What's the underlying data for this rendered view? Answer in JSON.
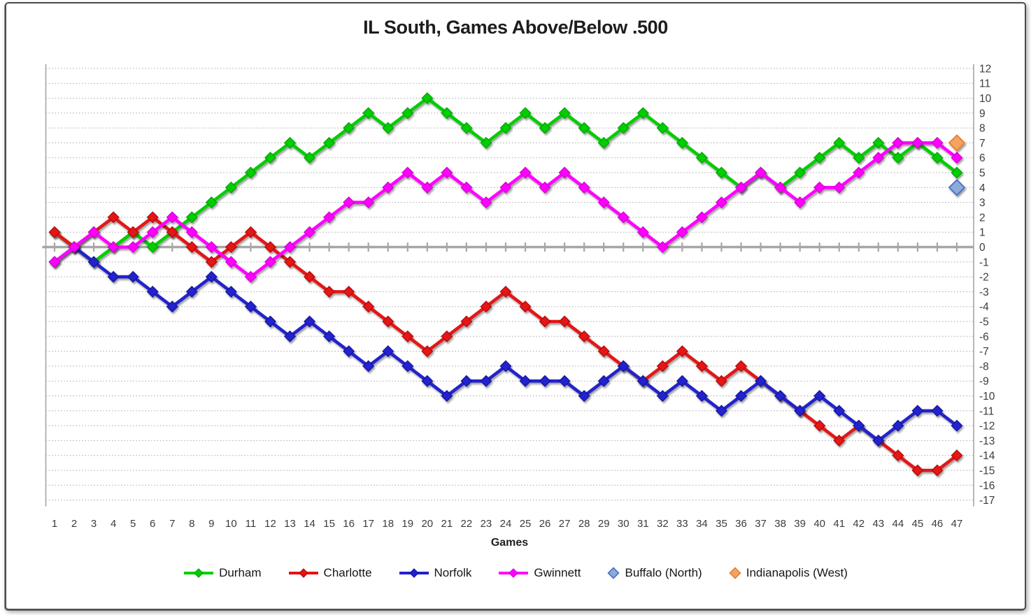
{
  "chart_data": {
    "type": "line",
    "title": "IL South, Games Above/Below .500",
    "xlabel": "Games",
    "ylim": [
      -17,
      12
    ],
    "x_range": [
      1,
      47
    ],
    "grid": "dotted horizontal lines at every integer",
    "legend_position": "bottom",
    "yticks": [
      12,
      11,
      10,
      9,
      8,
      7,
      6,
      5,
      4,
      3,
      2,
      1,
      0,
      -1,
      -2,
      -3,
      -4,
      -5,
      -6,
      -7,
      -8,
      -9,
      -10,
      -11,
      -12,
      -13,
      -14,
      -15,
      -16,
      -17
    ],
    "xticks": [
      1,
      2,
      3,
      4,
      5,
      6,
      7,
      8,
      9,
      10,
      11,
      12,
      13,
      14,
      15,
      16,
      17,
      18,
      19,
      20,
      21,
      22,
      23,
      24,
      25,
      26,
      27,
      28,
      29,
      30,
      31,
      32,
      33,
      34,
      35,
      36,
      37,
      38,
      39,
      40,
      41,
      42,
      43,
      44,
      45,
      46,
      47
    ],
    "colors": {
      "axis": "#A6A6A6",
      "grid": "#ABABAB",
      "tick_text": "#3C3C3C",
      "title_text": "#1D1D1D"
    },
    "series": [
      {
        "name": "Durham",
        "color": "#00CE00",
        "edge": "#00A300",
        "values": [
          1,
          0,
          -1,
          0,
          1,
          0,
          1,
          2,
          3,
          4,
          5,
          6,
          7,
          6,
          7,
          8,
          9,
          8,
          9,
          10,
          9,
          8,
          7,
          8,
          9,
          8,
          9,
          8,
          7,
          8,
          9,
          8,
          7,
          6,
          5,
          4,
          5,
          4,
          5,
          6,
          7,
          6,
          7,
          6,
          7,
          6,
          5
        ]
      },
      {
        "name": "Charlotte",
        "color": "#E51212",
        "edge": "#B30D0D",
        "values": [
          1,
          0,
          1,
          2,
          1,
          2,
          1,
          0,
          -1,
          0,
          1,
          0,
          -1,
          -2,
          -3,
          -3,
          -4,
          -5,
          -6,
          -7,
          -6,
          -5,
          -4,
          -3,
          -4,
          -5,
          -5,
          -6,
          -7,
          -8,
          -9,
          -8,
          -7,
          -8,
          -9,
          -8,
          -9,
          -10,
          -11,
          -12,
          -13,
          -12,
          -13,
          -14,
          -15,
          -15,
          -14
        ]
      },
      {
        "name": "Norfolk",
        "color": "#2121CE",
        "edge": "#18189E",
        "values": [
          -1,
          0,
          -1,
          -2,
          -2,
          -3,
          -4,
          -3,
          -2,
          -3,
          -4,
          -5,
          -6,
          -5,
          -6,
          -7,
          -8,
          -7,
          -8,
          -9,
          -10,
          -9,
          -9,
          -8,
          -9,
          -9,
          -9,
          -10,
          -9,
          -8,
          -9,
          -10,
          -9,
          -10,
          -11,
          -10,
          -9,
          -10,
          -11,
          -10,
          -11,
          -12,
          -13,
          -12,
          -11,
          -11,
          -12
        ]
      },
      {
        "name": "Gwinnett",
        "color": "#FF00FF",
        "edge": "#CF00CF",
        "values": [
          -1,
          0,
          1,
          0,
          0,
          1,
          2,
          1,
          0,
          -1,
          -2,
          -1,
          0,
          1,
          2,
          3,
          3,
          4,
          5,
          4,
          5,
          4,
          3,
          4,
          5,
          4,
          5,
          4,
          3,
          2,
          1,
          0,
          1,
          2,
          3,
          4,
          5,
          4,
          3,
          4,
          4,
          5,
          6,
          7,
          7,
          7,
          6
        ]
      }
    ],
    "points": [
      {
        "name": "Buffalo (North)",
        "color": "#8EA9DB",
        "edge": "#4472C4",
        "x": 47,
        "y": 4
      },
      {
        "name": "Indianapolis (West)",
        "color": "#F4A45F",
        "edge": "#ED7D31",
        "x": 47,
        "y": 7
      }
    ]
  }
}
